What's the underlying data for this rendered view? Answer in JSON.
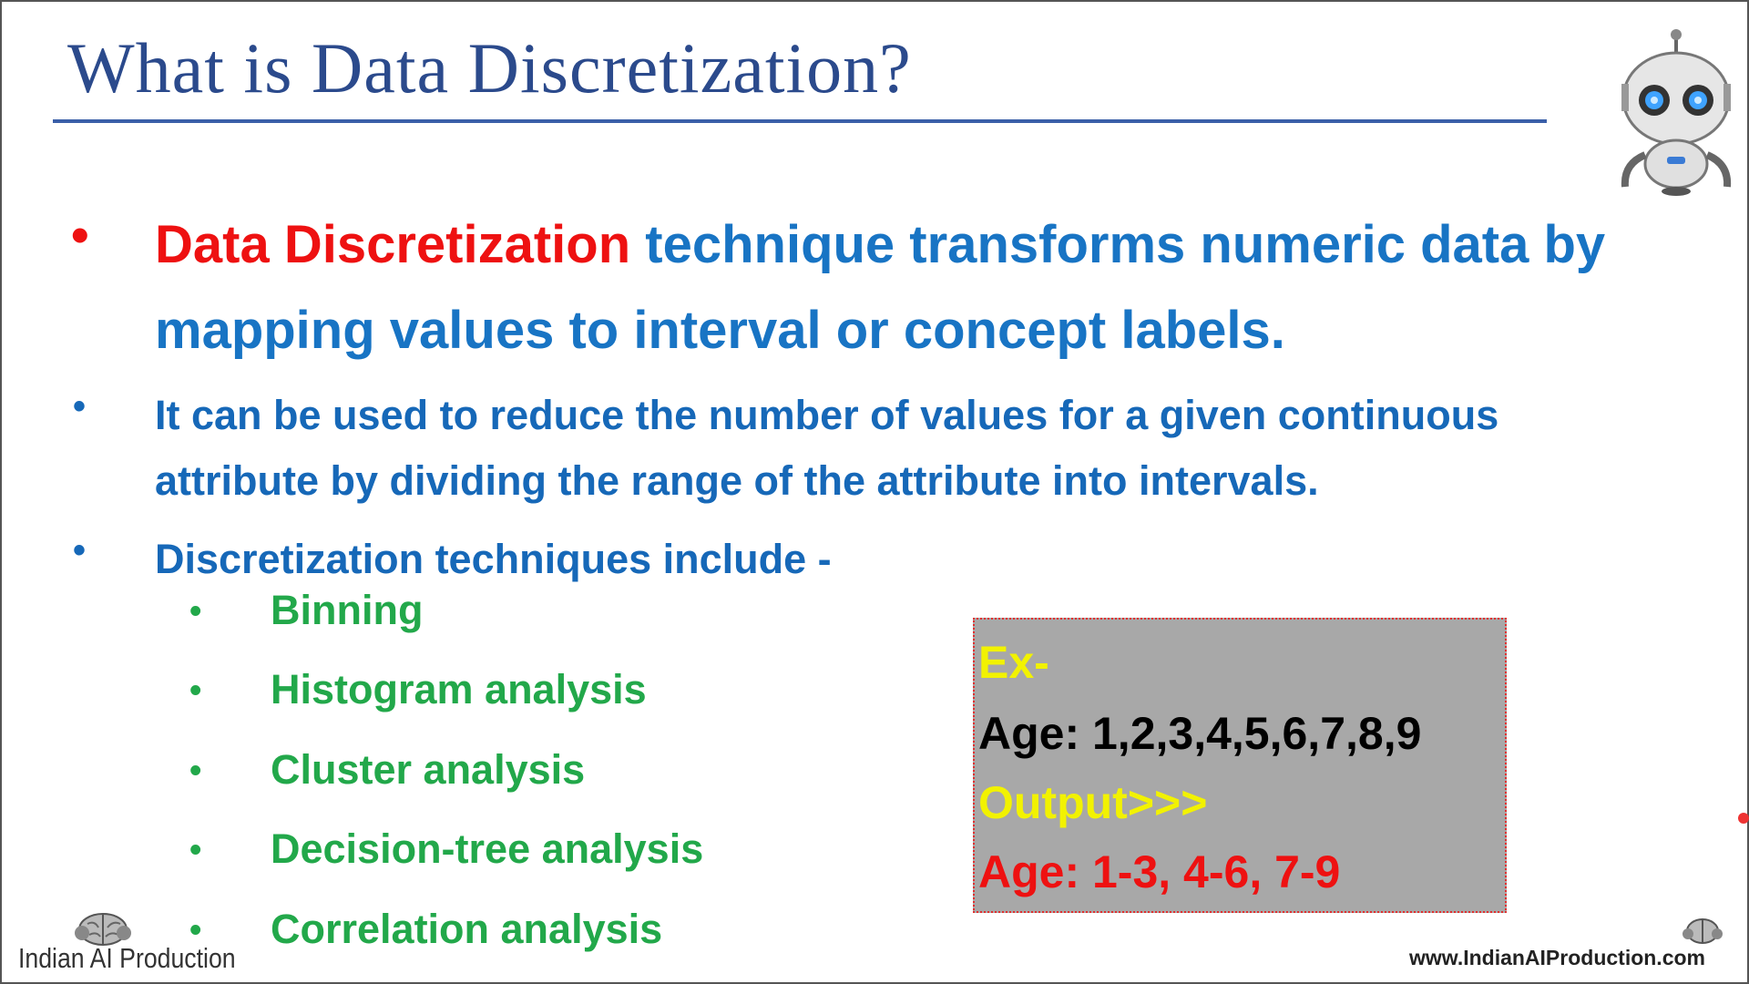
{
  "slide": {
    "title": "What is Data Discretization?",
    "bullet1": {
      "highlight": "Data Discretization",
      "rest": " technique transforms numeric data by mapping values to interval or concept labels."
    },
    "bullet2": "It can be used to reduce the number of values for a given continuous attribute by dividing the range of the attribute into intervals.",
    "bullet3": "Discretization techniques include -",
    "techniques": [
      "Binning",
      "Histogram analysis",
      "Cluster analysis",
      "Decision-tree analysis",
      "Correlation analysis"
    ],
    "example": {
      "label": "Ex-",
      "input": "Age: 1,2,3,4,5,6,7,8,9",
      "output_label": "Output>>>",
      "output": "Age: 1-3, 4-6, 7-9"
    }
  },
  "branding": {
    "left_logo_text": "Indian AI Production",
    "url": "www.IndianAIProduction.com"
  },
  "colors": {
    "title": "#2b4a8c",
    "main_blue": "#1874c4",
    "highlight_red": "#ee1111",
    "technique_green": "#22a84a",
    "example_yellow": "#f2f200",
    "example_bg": "#a8a8a8"
  },
  "icons": {
    "robot": "robot-mascot-icon",
    "brand": "brain-logo-icon"
  }
}
